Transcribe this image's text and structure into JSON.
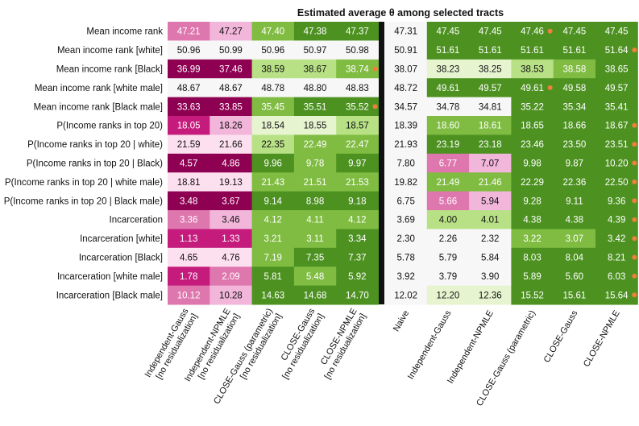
{
  "chart_data": {
    "type": "heatmap",
    "title": "Estimated average θ among selected tracts",
    "colormap": "PiYG",
    "rows": [
      "Mean income rank",
      "Mean income rank [white]",
      "Mean income rank [Black]",
      "Mean income rank [white male]",
      "Mean income rank [Black male]",
      "P(Income ranks in top 20)",
      "P(Income ranks in top 20 | white)",
      "P(Income ranks in top 20 | Black)",
      "P(Income ranks in top 20 | white male)",
      "P(Income ranks in top 20 | Black male)",
      "Incarceration",
      "Incarceration [white]",
      "Incarceration [Black]",
      "Incarceration [white male]",
      "Incarceration [Black male]"
    ],
    "columns": [
      "Independent-Gauss\n[no residualization]",
      "Independent-NPMLE\n[no residualization]",
      "CLOSE-Gauss (parametric)\n[no residualization]",
      "CLOSE-Gauss\n[no residualization]",
      "CLOSE-NPMLE\n[no residualization]",
      "Naive",
      "Independent-Gauss",
      "Independent-NPMLE",
      "CLOSE-Gauss (parametric)",
      "CLOSE-Gauss",
      "CLOSE-NPMLE"
    ],
    "values": [
      [
        47.21,
        47.27,
        47.4,
        47.38,
        47.37,
        47.31,
        47.45,
        47.45,
        47.46,
        47.45,
        47.45
      ],
      [
        50.96,
        50.99,
        50.96,
        50.97,
        50.98,
        50.91,
        51.61,
        51.61,
        51.61,
        51.61,
        51.64
      ],
      [
        36.99,
        37.46,
        38.59,
        38.67,
        38.74,
        38.07,
        38.23,
        38.25,
        38.53,
        38.58,
        38.65
      ],
      [
        48.67,
        48.67,
        48.78,
        48.8,
        48.83,
        48.72,
        49.61,
        49.57,
        49.61,
        49.58,
        49.57
      ],
      [
        33.63,
        33.85,
        35.45,
        35.51,
        35.52,
        34.57,
        34.78,
        34.81,
        35.22,
        35.34,
        35.41
      ],
      [
        18.05,
        18.26,
        18.54,
        18.55,
        18.57,
        18.39,
        18.6,
        18.61,
        18.65,
        18.66,
        18.67
      ],
      [
        21.59,
        21.66,
        22.35,
        22.49,
        22.47,
        21.93,
        23.19,
        23.18,
        23.46,
        23.5,
        23.51
      ],
      [
        4.57,
        4.86,
        9.96,
        9.78,
        9.97,
        7.8,
        6.77,
        7.07,
        9.98,
        9.87,
        10.2
      ],
      [
        18.81,
        19.13,
        21.43,
        21.51,
        21.53,
        19.82,
        21.49,
        21.46,
        22.29,
        22.36,
        22.5
      ],
      [
        3.48,
        3.67,
        9.14,
        8.98,
        9.18,
        6.75,
        5.66,
        5.94,
        9.28,
        9.11,
        9.36
      ],
      [
        3.36,
        3.46,
        4.12,
        4.11,
        4.12,
        3.69,
        4.0,
        4.01,
        4.38,
        4.38,
        4.39
      ],
      [
        1.13,
        1.33,
        3.21,
        3.11,
        3.34,
        2.3,
        2.26,
        2.32,
        3.22,
        3.07,
        3.42
      ],
      [
        4.65,
        4.76,
        7.19,
        7.35,
        7.37,
        5.78,
        5.79,
        5.84,
        8.03,
        8.04,
        8.21
      ],
      [
        1.78,
        2.09,
        5.81,
        5.48,
        5.92,
        3.92,
        3.79,
        3.9,
        5.89,
        5.6,
        6.03
      ],
      [
        10.12,
        10.28,
        14.63,
        14.68,
        14.7,
        12.02,
        12.2,
        12.36,
        15.52,
        15.61,
        15.64
      ]
    ],
    "cell_colors": [
      [
        "#de77ae",
        "#f1b6da",
        "#7fbc41",
        "#4d9221",
        "#4d9221",
        "#f7f7f7",
        "#4d9221",
        "#4d9221",
        "#4d9221",
        "#4d9221",
        "#4d9221"
      ],
      [
        "#f7f7f7",
        "#f7f7f7",
        "#f7f7f7",
        "#f7f7f7",
        "#f7f7f7",
        "#f7f7f7",
        "#4d9221",
        "#4d9221",
        "#4d9221",
        "#4d9221",
        "#4d9221"
      ],
      [
        "#8e0152",
        "#8e0152",
        "#b8e186",
        "#b8e186",
        "#7fbc41",
        "#f7f7f7",
        "#e6f5d0",
        "#e6f5d0",
        "#b8e186",
        "#7fbc41",
        "#4d9221"
      ],
      [
        "#f7f7f7",
        "#f7f7f7",
        "#f7f7f7",
        "#f7f7f7",
        "#f7f7f7",
        "#f7f7f7",
        "#4d9221",
        "#4d9221",
        "#4d9221",
        "#4d9221",
        "#4d9221"
      ],
      [
        "#8e0152",
        "#8e0152",
        "#7fbc41",
        "#4d9221",
        "#4d9221",
        "#f7f7f7",
        "#f7f7f7",
        "#f7f7f7",
        "#4d9221",
        "#4d9221",
        "#4d9221"
      ],
      [
        "#c51b7d",
        "#f1b6da",
        "#e6f5d0",
        "#e6f5d0",
        "#b8e186",
        "#f7f7f7",
        "#7fbc41",
        "#7fbc41",
        "#4d9221",
        "#4d9221",
        "#4d9221"
      ],
      [
        "#fde0ef",
        "#fde0ef",
        "#b8e186",
        "#7fbc41",
        "#7fbc41",
        "#f7f7f7",
        "#4d9221",
        "#4d9221",
        "#4d9221",
        "#4d9221",
        "#4d9221"
      ],
      [
        "#8e0152",
        "#8e0152",
        "#4d9221",
        "#7fbc41",
        "#4d9221",
        "#f7f7f7",
        "#de77ae",
        "#f1b6da",
        "#4d9221",
        "#4d9221",
        "#4d9221"
      ],
      [
        "#fde0ef",
        "#fde0ef",
        "#7fbc41",
        "#7fbc41",
        "#7fbc41",
        "#f7f7f7",
        "#7fbc41",
        "#7fbc41",
        "#4d9221",
        "#4d9221",
        "#4d9221"
      ],
      [
        "#8e0152",
        "#8e0152",
        "#4d9221",
        "#4d9221",
        "#4d9221",
        "#f7f7f7",
        "#de77ae",
        "#f1b6da",
        "#4d9221",
        "#4d9221",
        "#4d9221"
      ],
      [
        "#de77ae",
        "#f1b6da",
        "#7fbc41",
        "#7fbc41",
        "#7fbc41",
        "#f7f7f7",
        "#b8e186",
        "#b8e186",
        "#4d9221",
        "#4d9221",
        "#4d9221"
      ],
      [
        "#c51b7d",
        "#c51b7d",
        "#7fbc41",
        "#7fbc41",
        "#4d9221",
        "#f7f7f7",
        "#f7f7f7",
        "#f7f7f7",
        "#7fbc41",
        "#7fbc41",
        "#4d9221"
      ],
      [
        "#fde0ef",
        "#fde0ef",
        "#7fbc41",
        "#4d9221",
        "#4d9221",
        "#f7f7f7",
        "#f7f7f7",
        "#f7f7f7",
        "#4d9221",
        "#4d9221",
        "#4d9221"
      ],
      [
        "#c51b7d",
        "#de77ae",
        "#4d9221",
        "#7fbc41",
        "#4d9221",
        "#f7f7f7",
        "#f7f7f7",
        "#f7f7f7",
        "#4d9221",
        "#4d9221",
        "#4d9221"
      ],
      [
        "#de77ae",
        "#f1b6da",
        "#4d9221",
        "#4d9221",
        "#4d9221",
        "#f7f7f7",
        "#e6f5d0",
        "#e6f5d0",
        "#4d9221",
        "#4d9221",
        "#4d9221"
      ]
    ],
    "best_markers": [
      [
        0,
        8
      ],
      [
        1,
        10
      ],
      [
        2,
        4
      ],
      [
        3,
        8
      ],
      [
        4,
        4
      ],
      [
        5,
        10
      ],
      [
        6,
        10
      ],
      [
        7,
        10
      ],
      [
        8,
        10
      ],
      [
        9,
        10
      ],
      [
        10,
        10
      ],
      [
        11,
        10
      ],
      [
        12,
        10
      ],
      [
        13,
        10
      ],
      [
        14,
        10
      ]
    ],
    "marker_color": "#f07f3c",
    "separator_color": "#111111",
    "separator_after_column": 4
  }
}
